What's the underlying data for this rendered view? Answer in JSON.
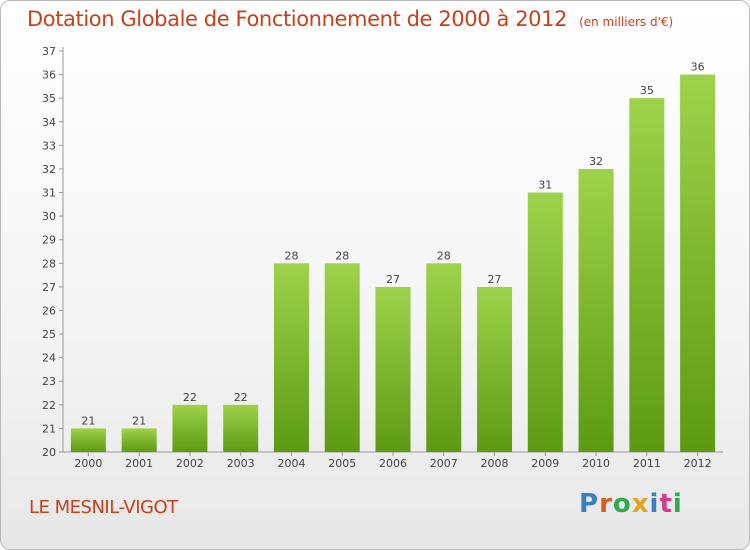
{
  "header": {
    "title": "Dotation Globale de Fonctionnement de 2000 à 2012",
    "unit": "(en milliers d'€)"
  },
  "footer": {
    "commune": "LE MESNIL-VIGOT",
    "logo_text": "Proxiti"
  },
  "colors": {
    "bar_top": "#9dd34a",
    "bar_bottom": "#5d9a12",
    "title": "#c8411b"
  },
  "chart_data": {
    "type": "bar",
    "title": "Dotation Globale de Fonctionnement de 2000 à 2012",
    "subtitle": "(en milliers d'€)",
    "xlabel": "",
    "ylabel": "",
    "categories": [
      "2000",
      "2001",
      "2002",
      "2003",
      "2004",
      "2005",
      "2006",
      "2007",
      "2008",
      "2009",
      "2010",
      "2011",
      "2012"
    ],
    "values": [
      21,
      21,
      22,
      22,
      28,
      28,
      27,
      28,
      27,
      31,
      32,
      35,
      36
    ],
    "ylim": [
      20,
      37
    ],
    "yticks": [
      20,
      21,
      22,
      23,
      24,
      25,
      26,
      27,
      28,
      29,
      30,
      31,
      32,
      33,
      34,
      35,
      36,
      37
    ],
    "grid": false,
    "legend": "none"
  }
}
